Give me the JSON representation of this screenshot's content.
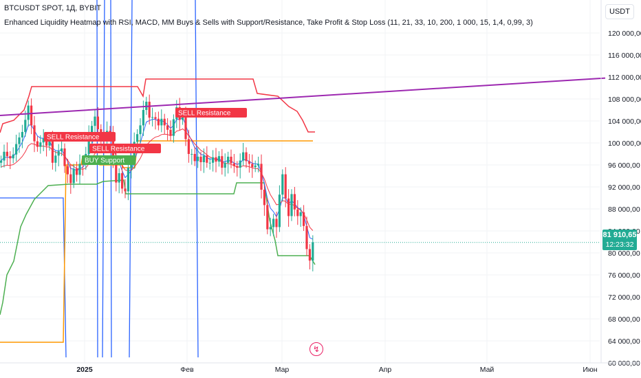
{
  "header": {
    "symbol_line": "BTCUSDT SPOT, 1Д, BYBIT",
    "indicator_line": "Enhanced Liquidity Heatmap with RSI, MACD, MM Buys & Sells with Support/Resistance, Take Profit & Stop Loss (11, 21, 33, 10, 200, 1 000, 15, 1,4, 0,99, 3)"
  },
  "currency_button": "USDT",
  "last_price": {
    "price": "81 910,65",
    "countdown": "12:23:32",
    "color": "#22ab94"
  },
  "icons": {
    "replay": "lightning-icon"
  },
  "colors": {
    "up": "#22ab94",
    "down": "#f23645",
    "resistance": "#f23645",
    "support": "#4caf50",
    "orange_level": "#ff9800",
    "trend_line": "#9c27b0",
    "blue_lines": "#2962ff",
    "ema_fast": "#2962ff",
    "ema_slow": "#f23645"
  },
  "chart_data": {
    "type": "candlestick",
    "title": "BTCUSDT SPOT, 1Д, BYBIT",
    "y_axis": {
      "ticks": [
        "120 000,00",
        "116 000,00",
        "112 000,00",
        "108 000,00",
        "104 000,00",
        "100 000,00",
        "96 000,00",
        "92 000,00",
        "88 000,00",
        "84 000,00",
        "80 000,00",
        "76 000,00",
        "72 000,00",
        "68 000,00",
        "64 000,00",
        "60 000,00"
      ],
      "range": [
        60000,
        122500
      ]
    },
    "x_axis": {
      "labels": [
        "2025",
        "Фев",
        "Мар",
        "Апр",
        "Май",
        "Июн"
      ]
    },
    "candles_close": [
      96800,
      98400,
      97600,
      97200,
      97900,
      99800,
      101000,
      102000,
      104200,
      106800,
      103200,
      100300,
      99300,
      100100,
      100800,
      99500,
      100500,
      96400,
      97700,
      98500,
      99000,
      95800,
      94300,
      92700,
      95300,
      94200,
      96200,
      96000,
      98000,
      101500,
      103100,
      104800,
      102500,
      101000,
      100400,
      102200,
      101800,
      96700,
      92800,
      94500,
      91700,
      91200,
      95500,
      96200,
      100200,
      101600,
      103200,
      106000,
      107500,
      104600,
      104700,
      104400,
      103200,
      104400,
      103200,
      102400,
      101300,
      104300,
      106500,
      104200,
      105300,
      100700,
      98000,
      98000,
      96700,
      97500,
      96500,
      97700,
      96400,
      96400,
      97400,
      96600,
      97600,
      95500,
      96400,
      97500,
      96300,
      95800,
      95500,
      96800,
      98300,
      96700,
      96200,
      95600,
      95900,
      96200,
      91500,
      88700,
      84300,
      84700,
      86200,
      84700,
      90600,
      94300,
      89900,
      86700,
      90700,
      87900,
      86700,
      87400,
      84900,
      80700,
      78600,
      81910
    ],
    "orange_level": 99000,
    "green_support_recent": 77200,
    "red_resistance_segments": [
      108600,
      109800,
      100000
    ],
    "trend_line": {
      "from": 105000,
      "to": 111800
    },
    "labels": {
      "sell_resistance_1": "SELL Resistance",
      "sell_resistance_2": "SELL Resistance",
      "buy_support": "BUY Support",
      "resistance_3": "SELL Resistance"
    }
  }
}
